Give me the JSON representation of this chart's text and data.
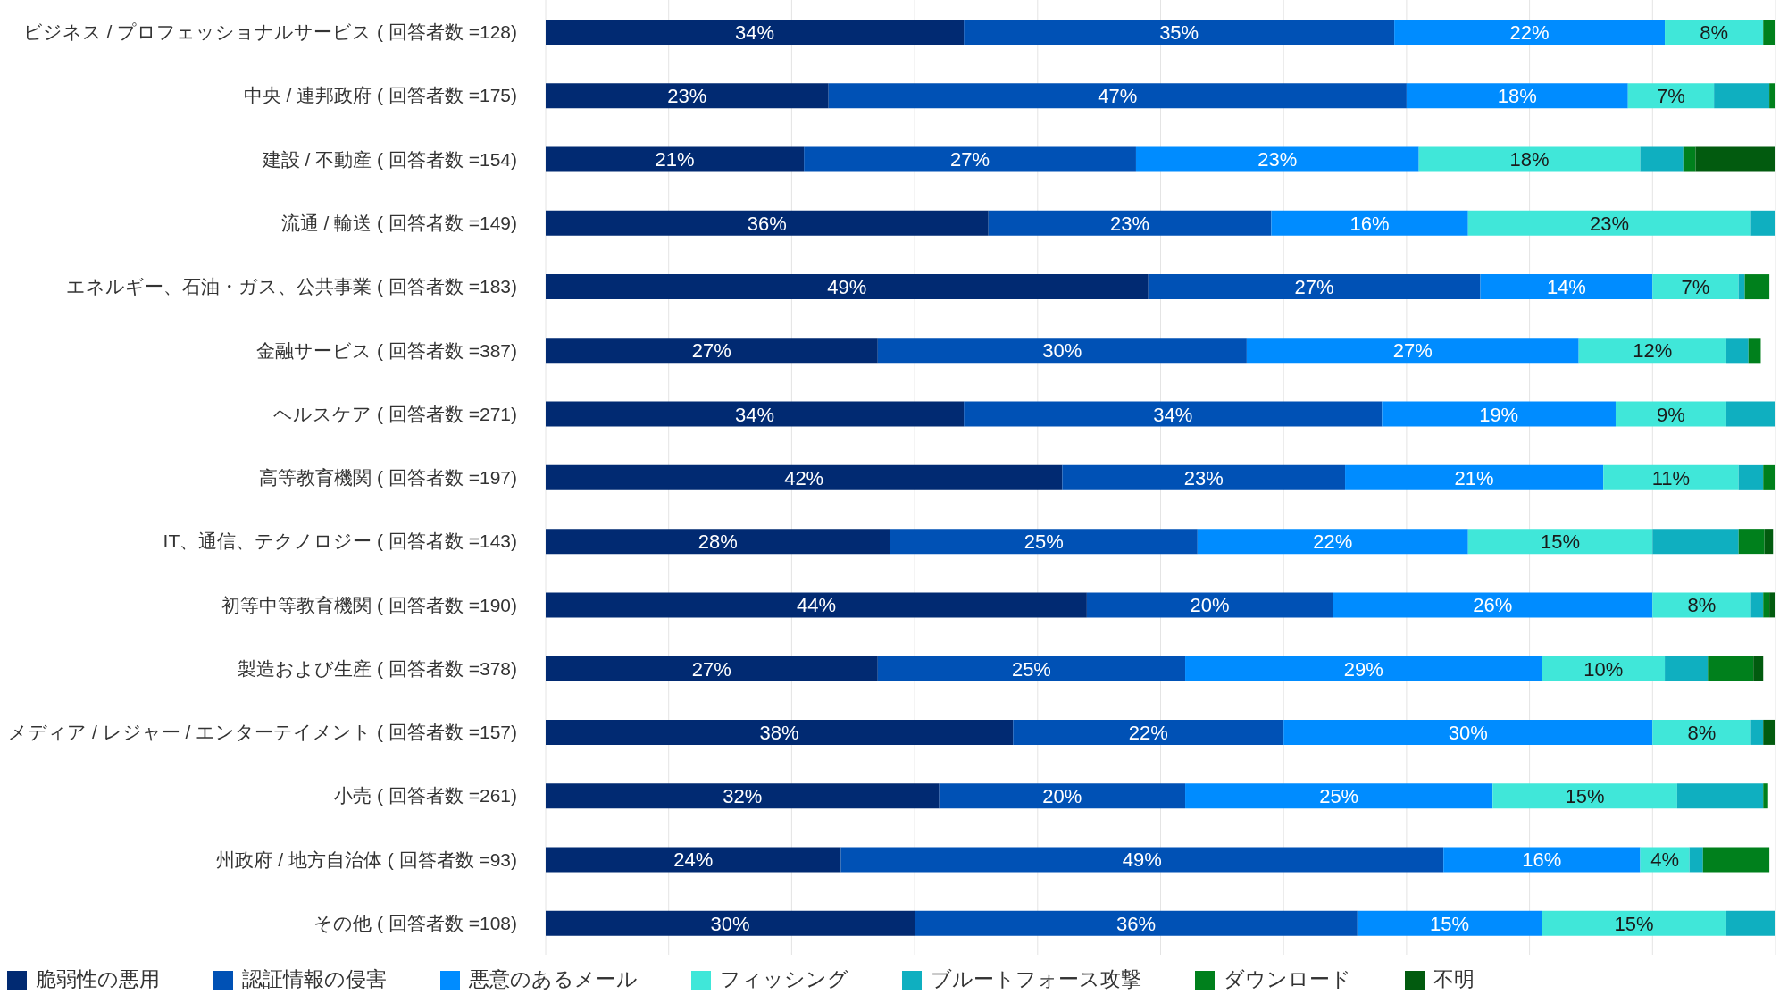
{
  "chart_data": {
    "type": "bar",
    "orientation": "horizontal",
    "stacked": true,
    "categories": [
      "ビジネス / プロフェッショナルサービス ( 回答者数 =128)",
      "中央 / 連邦政府 ( 回答者数 =175)",
      "建設 / 不動産 ( 回答者数 =154)",
      "流通 / 輸送 ( 回答者数 =149)",
      "エネルギー、石油・ガス、公共事業 ( 回答者数 =183)",
      "金融サービス ( 回答者数 =387)",
      "ヘルスケア ( 回答者数 =271)",
      "高等教育機関 ( 回答者数 =197)",
      "IT、通信、テクノロジー ( 回答者数 =143)",
      "初等中等教育機関 ( 回答者数 =190)",
      "製造および生産 ( 回答者数 =378)",
      "メディア / レジャー / エンターテイメント ( 回答者数 =157)",
      "小売 ( 回答者数 =261)",
      "州政府 / 地方自治体 ( 回答者数 =93)",
      "その他 ( 回答者数 =108)"
    ],
    "series": [
      {
        "name": "脆弱性の悪用",
        "color": "#012a72",
        "values": [
          34,
          23,
          21,
          36,
          49,
          27,
          34,
          42,
          28,
          44,
          27,
          38,
          32,
          24,
          30
        ],
        "value_labels": [
          "34%",
          "23%",
          "21%",
          "36%",
          "49%",
          "27%",
          "34%",
          "42%",
          "28%",
          "44%",
          "27%",
          "38%",
          "32%",
          "24%",
          "30%"
        ]
      },
      {
        "name": "認証情報の侵害",
        "color": "#0051b5",
        "values": [
          35,
          47,
          27,
          23,
          27,
          30,
          34,
          23,
          25,
          20,
          25,
          22,
          20,
          49,
          36
        ],
        "value_labels": [
          "35%",
          "47%",
          "27%",
          "23%",
          "27%",
          "30%",
          "34%",
          "23%",
          "25%",
          "20%",
          "25%",
          "22%",
          "20%",
          "49%",
          "36%"
        ]
      },
      {
        "name": "悪意のあるメール",
        "color": "#008cff",
        "values": [
          22,
          18,
          23,
          16,
          14,
          27,
          19,
          21,
          22,
          26,
          29,
          30,
          25,
          16,
          15
        ],
        "value_labels": [
          "22%",
          "18%",
          "23%",
          "16%",
          "14%",
          "27%",
          "19%",
          "21%",
          "22%",
          "26%",
          "29%",
          "30%",
          "25%",
          "16%",
          "15%"
        ]
      },
      {
        "name": "フィッシング",
        "color": "#40e7d9",
        "values": [
          8,
          7,
          18,
          23,
          7,
          12,
          9,
          11,
          15,
          8,
          10,
          8,
          15,
          4,
          15
        ],
        "value_labels": [
          "8%",
          "7%",
          "18%",
          "23%",
          "7%",
          "12%",
          "9%",
          "11%",
          "15%",
          "8%",
          "10%",
          "8%",
          "15%",
          "4%",
          "15%"
        ]
      },
      {
        "name": "ブルートフォース攻撃",
        "color": "#0fafc0",
        "values": [
          null,
          4.5,
          3.5,
          2,
          0.5,
          1.8,
          4,
          2,
          7,
          1,
          3.5,
          1,
          7,
          1.1,
          4
        ]
      },
      {
        "name": "ダウンロード",
        "color": "#00801c",
        "values": [
          1,
          0.5,
          1,
          null,
          2,
          1,
          null,
          1,
          2.1,
          0.5,
          3.7,
          null,
          0.4,
          5.4,
          null
        ]
      },
      {
        "name": "不明",
        "color": "#025b0f",
        "values": [
          null,
          null,
          6.5,
          null,
          null,
          null,
          null,
          null,
          0.7,
          0.5,
          0.8,
          1,
          null,
          null,
          null
        ]
      }
    ],
    "xlim": [
      0,
      100
    ],
    "xticks": [
      {
        "value": 0,
        "label": null
      },
      {
        "value": 10,
        "label": null
      },
      {
        "value": 20,
        "label": null
      },
      {
        "value": 30,
        "label": null
      },
      {
        "value": 40,
        "label": null
      },
      {
        "value": 50,
        "label": null
      },
      {
        "value": 60,
        "label": null
      },
      {
        "value": 70,
        "label": null
      },
      {
        "value": 80,
        "label": null
      },
      {
        "value": 90,
        "label": null
      },
      {
        "value": 100,
        "label": null
      }
    ],
    "grid": "x",
    "legend": "bottom left",
    "tick_labels": "y"
  }
}
